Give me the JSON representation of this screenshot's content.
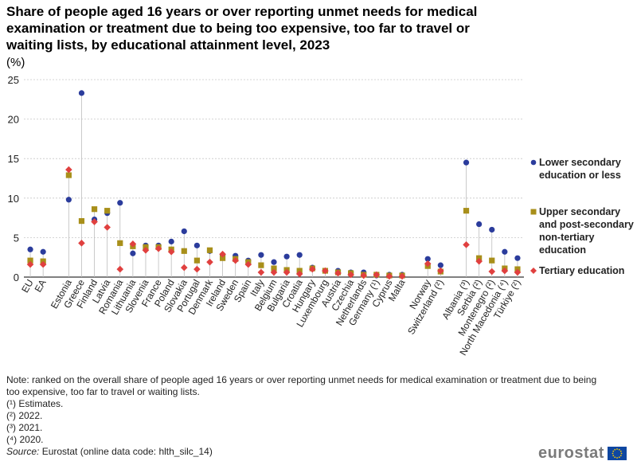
{
  "title": "Share of people aged 16 years or over reporting unmet needs for medical examination or treatment due to being too expensive, too far to travel or waiting lists, by educational attainment level, 2023",
  "unit": "(%)",
  "legend": [
    {
      "name": "Lower secondary education or less",
      "color": "#2b3c9c",
      "marker": "circle"
    },
    {
      "name": "Upper secondary and post-secondary non-tertiary education",
      "color": "#a88f1a",
      "marker": "square"
    },
    {
      "name": "Tertiary education",
      "color": "#e0403f",
      "marker": "diamond"
    }
  ],
  "notes": {
    "main": "Note: ranked on the overall share of people aged 16 years or over reporting unmet needs for medical examination or treatment due to being too expensive, too far to travel or waiting lists.",
    "n1": "(¹) Estimates.",
    "n2": "(²) 2022.",
    "n3": "(³) 2021.",
    "n4": "(⁴) 2020.",
    "source_label": "Source:",
    "source_text": " Eurostat (online data code: hlth_silc_14)"
  },
  "logo": {
    "text": "eurostat"
  },
  "chart_data": {
    "type": "scatter",
    "ylim": [
      0,
      25
    ],
    "yticks": [
      0,
      5,
      10,
      15,
      20,
      25
    ],
    "grid": true,
    "legend_position": "right",
    "categories": [
      "EU",
      "EA",
      "",
      "Estonia",
      "Greece",
      "Finland",
      "Latvia",
      "Romania",
      "Lithuania",
      "Slovenia",
      "France",
      "Poland",
      "Slovakia",
      "Portugal",
      "Denmark",
      "Ireland",
      "Sweden",
      "Spain",
      "Italy",
      "Belgium",
      "Bulgaria",
      "Croatia",
      "Hungary",
      "Luxembourg",
      "Austria",
      "Czechia",
      "Netherlands",
      "Germany (¹)",
      "Cyprus",
      "Malta",
      "",
      "Norway",
      "Switzerland (²)",
      "",
      "Albania (³)",
      "Serbia (²)",
      "Montenegro (²)",
      "North Macedonia (⁴)",
      "Türkiye (²)"
    ],
    "series": [
      {
        "name": "Lower secondary education or less",
        "values": [
          3.5,
          3.2,
          null,
          9.8,
          23.3,
          7.3,
          8.1,
          9.4,
          3.0,
          4.0,
          4.0,
          4.5,
          5.8,
          4.0,
          3.3,
          2.8,
          2.7,
          2.1,
          2.8,
          1.9,
          2.6,
          2.8,
          1.2,
          0.8,
          0.8,
          0.6,
          0.6,
          0.2,
          0.3,
          0.3,
          null,
          2.3,
          1.5,
          null,
          14.5,
          6.7,
          6.0,
          3.2,
          2.4
        ]
      },
      {
        "name": "Upper secondary and post-secondary non-tertiary education",
        "values": [
          2.1,
          2.0,
          null,
          12.9,
          7.1,
          8.6,
          8.4,
          4.3,
          3.9,
          3.8,
          3.8,
          3.5,
          3.3,
          2.1,
          3.4,
          2.4,
          2.3,
          1.9,
          1.5,
          1.1,
          0.9,
          0.8,
          1.1,
          0.8,
          0.6,
          0.5,
          0.3,
          0.3,
          0.2,
          0.2,
          null,
          1.4,
          0.7,
          null,
          8.4,
          2.4,
          2.1,
          1.1,
          1.0
        ]
      },
      {
        "name": "Tertiary education",
        "values": [
          1.6,
          1.6,
          null,
          13.6,
          4.3,
          7.0,
          6.3,
          1.0,
          4.2,
          3.4,
          3.6,
          3.2,
          1.2,
          1.0,
          1.9,
          2.9,
          2.1,
          1.6,
          0.6,
          0.6,
          0.6,
          0.4,
          1.0,
          0.8,
          0.5,
          0.3,
          0.2,
          0.3,
          0.1,
          0.1,
          null,
          1.7,
          0.8,
          null,
          4.1,
          2.0,
          0.7,
          0.8,
          0.6
        ]
      }
    ]
  }
}
